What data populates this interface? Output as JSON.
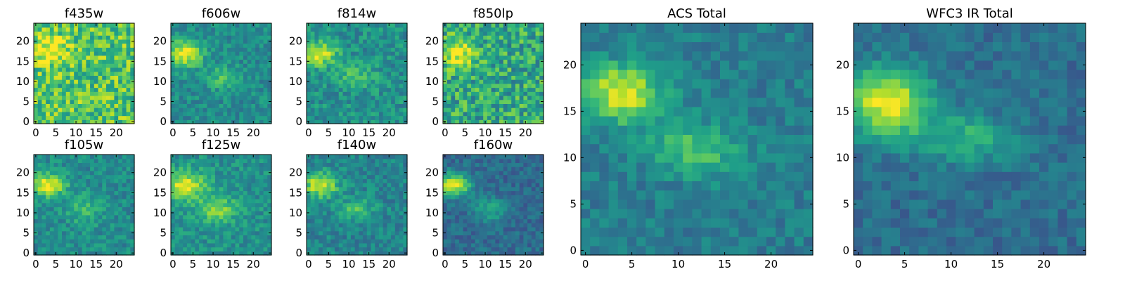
{
  "chart_data": [
    {
      "type": "heatmap",
      "title": "f435w",
      "colormap": "viridis",
      "grid_size": [
        25,
        25
      ],
      "xticks": [
        0,
        5,
        10,
        15,
        20
      ],
      "yticks": [
        0,
        5,
        10,
        15,
        20
      ],
      "xlim": [
        0,
        24
      ],
      "ylim": [
        0,
        24
      ],
      "features": {
        "background": 0.72,
        "noise": 0.22,
        "blobs": [
          {
            "x": 4,
            "y": 18,
            "amp": 0.3,
            "sx": 3,
            "sy": 2.5
          }
        ]
      }
    },
    {
      "type": "heatmap",
      "title": "f606w",
      "colormap": "viridis",
      "grid_size": [
        25,
        25
      ],
      "xticks": [
        0,
        5,
        10,
        15,
        20
      ],
      "yticks": [
        0,
        5,
        10,
        15,
        20
      ],
      "xlim": [
        0,
        24
      ],
      "ylim": [
        0,
        24
      ],
      "features": {
        "background": 0.48,
        "noise": 0.12,
        "blobs": [
          {
            "x": 3,
            "y": 17,
            "amp": 0.5,
            "sx": 3,
            "sy": 2.2
          },
          {
            "x": 12,
            "y": 11,
            "amp": 0.2,
            "sx": 3,
            "sy": 2
          }
        ]
      }
    },
    {
      "type": "heatmap",
      "title": "f814w",
      "colormap": "viridis",
      "grid_size": [
        25,
        25
      ],
      "xticks": [
        0,
        5,
        10,
        15,
        20
      ],
      "yticks": [
        0,
        5,
        10,
        15,
        20
      ],
      "xlim": [
        0,
        24
      ],
      "ylim": [
        0,
        24
      ],
      "features": {
        "background": 0.5,
        "noise": 0.14,
        "blobs": [
          {
            "x": 3,
            "y": 17,
            "amp": 0.45,
            "sx": 3,
            "sy": 2.2
          },
          {
            "x": 12,
            "y": 11,
            "amp": 0.22,
            "sx": 3,
            "sy": 2
          }
        ]
      }
    },
    {
      "type": "heatmap",
      "title": "f850lp",
      "colormap": "viridis",
      "grid_size": [
        25,
        25
      ],
      "xticks": [
        0,
        5,
        10,
        15,
        20
      ],
      "yticks": [
        0,
        5,
        10,
        15,
        20
      ],
      "xlim": [
        0,
        24
      ],
      "ylim": [
        0,
        24
      ],
      "features": {
        "background": 0.6,
        "noise": 0.22,
        "blobs": [
          {
            "x": 3,
            "y": 17,
            "amp": 0.38,
            "sx": 3,
            "sy": 2.5
          }
        ]
      }
    },
    {
      "type": "heatmap",
      "title": "f105w",
      "colormap": "viridis",
      "grid_size": [
        25,
        25
      ],
      "xticks": [
        0,
        5,
        10,
        15,
        20
      ],
      "yticks": [
        0,
        5,
        10,
        15,
        20
      ],
      "xlim": [
        0,
        24
      ],
      "ylim": [
        0,
        24
      ],
      "features": {
        "background": 0.48,
        "noise": 0.12,
        "blobs": [
          {
            "x": 3,
            "y": 17,
            "amp": 0.52,
            "sx": 3,
            "sy": 2
          },
          {
            "x": 12,
            "y": 11,
            "amp": 0.22,
            "sx": 3,
            "sy": 2.5
          }
        ]
      }
    },
    {
      "type": "heatmap",
      "title": "f125w",
      "colormap": "viridis",
      "grid_size": [
        25,
        25
      ],
      "xticks": [
        0,
        5,
        10,
        15,
        20
      ],
      "yticks": [
        0,
        5,
        10,
        15,
        20
      ],
      "xlim": [
        0,
        24
      ],
      "ylim": [
        0,
        24
      ],
      "features": {
        "background": 0.5,
        "noise": 0.12,
        "blobs": [
          {
            "x": 3,
            "y": 17,
            "amp": 0.45,
            "sx": 3.5,
            "sy": 2.5
          },
          {
            "x": 11,
            "y": 11,
            "amp": 0.3,
            "sx": 3.5,
            "sy": 2.5
          }
        ]
      }
    },
    {
      "type": "heatmap",
      "title": "f140w",
      "colormap": "viridis",
      "grid_size": [
        25,
        25
      ],
      "xticks": [
        0,
        5,
        10,
        15,
        20
      ],
      "yticks": [
        0,
        5,
        10,
        15,
        20
      ],
      "xlim": [
        0,
        24
      ],
      "ylim": [
        0,
        24
      ],
      "features": {
        "background": 0.45,
        "noise": 0.12,
        "blobs": [
          {
            "x": 3,
            "y": 17,
            "amp": 0.5,
            "sx": 3,
            "sy": 2.2
          },
          {
            "x": 12,
            "y": 11,
            "amp": 0.25,
            "sx": 3,
            "sy": 2
          }
        ]
      }
    },
    {
      "type": "heatmap",
      "title": "f160w",
      "colormap": "viridis",
      "grid_size": [
        25,
        25
      ],
      "xticks": [
        0,
        5,
        10,
        15,
        20
      ],
      "yticks": [
        0,
        5,
        10,
        15,
        20
      ],
      "xlim": [
        0,
        24
      ],
      "ylim": [
        0,
        24
      ],
      "features": {
        "background": 0.35,
        "noise": 0.1,
        "blobs": [
          {
            "x": 2,
            "y": 17,
            "amp": 0.6,
            "sx": 3,
            "sy": 2
          },
          {
            "x": 11,
            "y": 11,
            "amp": 0.25,
            "sx": 3,
            "sy": 2
          }
        ]
      }
    },
    {
      "type": "heatmap",
      "title": "ACS Total",
      "colormap": "viridis",
      "grid_size": [
        25,
        25
      ],
      "xticks": [
        0,
        5,
        10,
        15,
        20
      ],
      "yticks": [
        0,
        5,
        10,
        15,
        20
      ],
      "xlim": [
        0,
        24
      ],
      "ylim": [
        0,
        24
      ],
      "features": {
        "background": 0.42,
        "noise": 0.1,
        "blobs": [
          {
            "x": 4,
            "y": 17,
            "amp": 0.55,
            "sx": 3,
            "sy": 2.2
          },
          {
            "x": 12,
            "y": 11,
            "amp": 0.3,
            "sx": 3.5,
            "sy": 2
          }
        ]
      }
    },
    {
      "type": "heatmap",
      "title": "WFC3 IR Total",
      "colormap": "viridis",
      "grid_size": [
        25,
        25
      ],
      "xticks": [
        0,
        5,
        10,
        15,
        20
      ],
      "yticks": [
        0,
        5,
        10,
        15,
        20
      ],
      "xlim": [
        0,
        24
      ],
      "ylim": [
        0,
        24
      ],
      "features": {
        "background": 0.36,
        "noise": 0.09,
        "blobs": [
          {
            "x": 3,
            "y": 16,
            "amp": 0.6,
            "sx": 3.5,
            "sy": 2.5
          },
          {
            "x": 12,
            "y": 12,
            "amp": 0.28,
            "sx": 4,
            "sy": 1.8
          }
        ]
      }
    }
  ]
}
